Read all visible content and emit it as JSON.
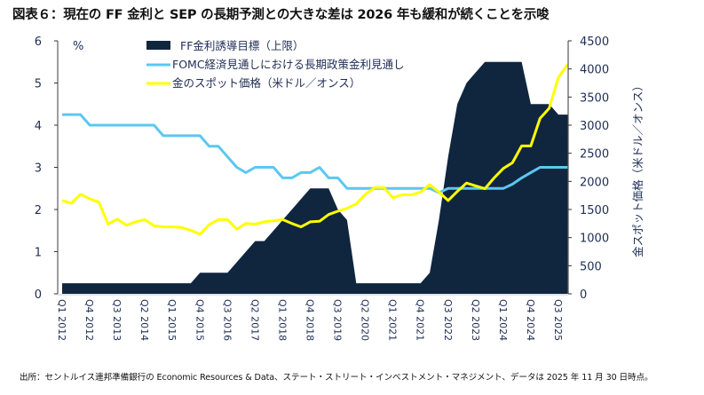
{
  "title": "図表６：現在の FF 金利と SEP の長期予測との大きな差は 2026 年も緩和が続くことを示唆",
  "footnote": "出所：セントルイス連邦準備銀行の Economic Resources & Data、ステート・ストリート・インベストメント・マネジメント、データは 2025 年 11 月 30 日時点。",
  "chart_data": {
    "type": "line",
    "title": "図表６：現在の FF 金利と SEP の長期予測との大きな差は 2026 年も緩和が続くことを示唆",
    "ylabel_left": "%",
    "ylabel_right": "金スポット価格（米ドル／オンス）",
    "ylim_left": [
      0,
      6
    ],
    "ylim_right": [
      0,
      4500
    ],
    "yticks_left": [
      "0",
      "1",
      "2",
      "3",
      "4",
      "5",
      "6"
    ],
    "yticks_right": [
      "0",
      "500",
      "1000",
      "1500",
      "2000",
      "2500",
      "3000",
      "3500",
      "4000",
      "4500"
    ],
    "grid": false,
    "legend_position": "top-left",
    "x_tick_labels": [
      "Q1 2012",
      "Q4 2012",
      "Q3 2013",
      "Q2 2014",
      "Q1 2015",
      "Q4 2015",
      "Q3 2016",
      "Q2 2017",
      "Q1 2018",
      "Q4 2018",
      "Q3 2019",
      "Q2 2020",
      "Q1 2021",
      "Q4 2021",
      "Q3 2022",
      "Q2 2023",
      "Q1 2024",
      "Q4 2024",
      "Q3 2025"
    ],
    "x_start": "Q1 2012",
    "x_frequency": "quarterly",
    "series": [
      {
        "name": "FF金利誘導目標（上限）",
        "kind": "area",
        "axis": "left",
        "color": "#10263f",
        "values": [
          0.25,
          0.25,
          0.25,
          0.25,
          0.25,
          0.25,
          0.25,
          0.25,
          0.25,
          0.25,
          0.25,
          0.25,
          0.25,
          0.25,
          0.25,
          0.5,
          0.5,
          0.5,
          0.5,
          0.75,
          1.0,
          1.25,
          1.25,
          1.5,
          1.75,
          2.0,
          2.25,
          2.5,
          2.5,
          2.5,
          2.0,
          1.75,
          0.25,
          0.25,
          0.25,
          0.25,
          0.25,
          0.25,
          0.25,
          0.25,
          0.5,
          1.75,
          3.25,
          4.5,
          5.0,
          5.25,
          5.5,
          5.5,
          5.5,
          5.5,
          5.5,
          4.5,
          4.5,
          4.5,
          4.25,
          4.25
        ]
      },
      {
        "name": "FOMC経済見通しにおける長期政策金利見通し",
        "kind": "line",
        "axis": "left",
        "color": "#5bc8f0",
        "values": [
          4.25,
          4.25,
          4.25,
          4.0,
          4.0,
          4.0,
          4.0,
          4.0,
          4.0,
          4.0,
          4.0,
          3.75,
          3.75,
          3.75,
          3.75,
          3.75,
          3.5,
          3.5,
          3.25,
          3.0,
          2.875,
          3.0,
          3.0,
          3.0,
          2.75,
          2.75,
          2.875,
          2.875,
          3.0,
          2.75,
          2.75,
          2.5,
          2.5,
          2.5,
          2.5,
          2.5,
          2.5,
          2.5,
          2.5,
          2.5,
          2.5,
          2.4,
          2.5,
          2.5,
          2.5,
          2.5,
          2.5,
          2.5,
          2.5,
          2.6,
          2.75,
          2.875,
          3.0,
          3.0,
          3.0,
          3.0
        ]
      },
      {
        "name": "金のスポット価格（米ドル／オンス）",
        "kind": "line",
        "axis": "right",
        "color": "#ffff00",
        "values": [
          1660,
          1610,
          1770,
          1690,
          1630,
          1240,
          1330,
          1220,
          1280,
          1320,
          1210,
          1190,
          1190,
          1180,
          1130,
          1060,
          1230,
          1320,
          1320,
          1150,
          1250,
          1240,
          1280,
          1300,
          1320,
          1250,
          1190,
          1280,
          1290,
          1410,
          1470,
          1520,
          1600,
          1770,
          1890,
          1890,
          1710,
          1760,
          1760,
          1810,
          1940,
          1810,
          1660,
          1820,
          1970,
          1920,
          1870,
          2060,
          2230,
          2330,
          2630,
          2630,
          3120,
          3300,
          3850,
          4080
        ]
      }
    ]
  }
}
